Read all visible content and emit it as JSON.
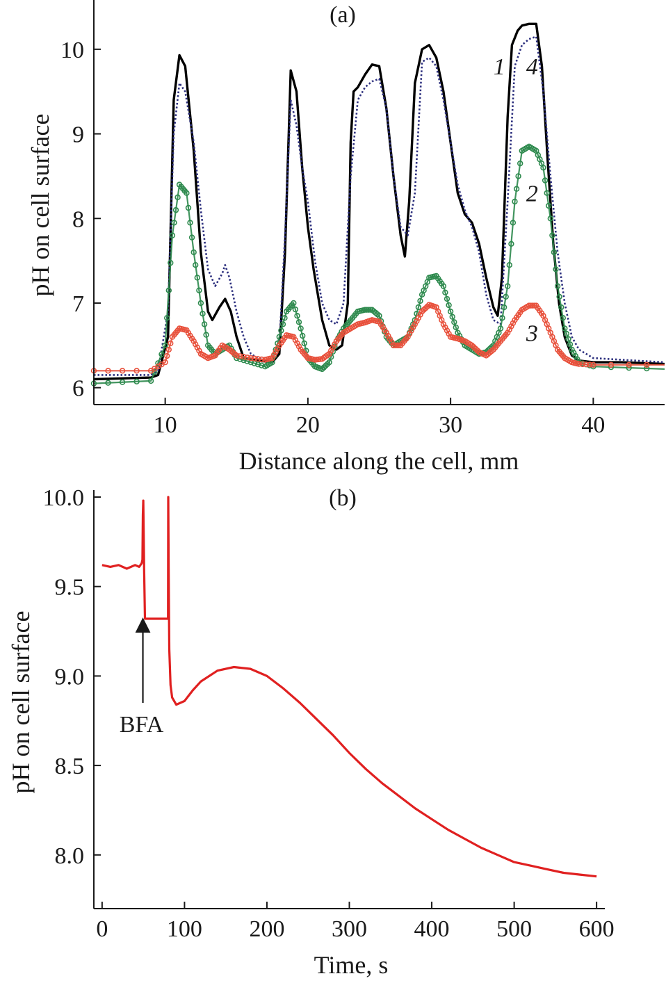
{
  "figure": {
    "colors": {
      "axis": "#1a1a1a"
    }
  },
  "chart_data": [
    {
      "type": "line",
      "panel_label": "(a)",
      "xlabel": "Distance along the cell, mm",
      "ylabel": "pH on cell surface",
      "xlim": [
        5,
        45
      ],
      "ylim": [
        5.8,
        10.5
      ],
      "xticks": [
        10,
        20,
        30,
        40
      ],
      "yticks": [
        6,
        7,
        8,
        9,
        10
      ],
      "xtick_labels": [
        "10",
        "20",
        "30",
        "40"
      ],
      "ytick_labels": [
        "6",
        "7",
        "8",
        "9",
        "10"
      ],
      "grid": false,
      "series": [
        {
          "name": "1",
          "color": "#000000",
          "style": "solid",
          "x": [
            5,
            9,
            9.5,
            10.2,
            10.6,
            11,
            11.4,
            12,
            12.5,
            13,
            13.3,
            13.8,
            14.2,
            14.6,
            15,
            15.5,
            16.5,
            17.5,
            18,
            18.4,
            18.8,
            19.2,
            19.6,
            20,
            20.4,
            21,
            21.5,
            22,
            22.4,
            22.8,
            23,
            23.2,
            23.5,
            24,
            24.5,
            25,
            25.5,
            26,
            26.5,
            26.8,
            27.1,
            27.5,
            28,
            28.5,
            29,
            29.5,
            30,
            30.5,
            31,
            31.5,
            32,
            32.5,
            33,
            33.3,
            33.6,
            34,
            34.3,
            34.7,
            35,
            35.5,
            36,
            36.4,
            36.8,
            37.2,
            37.6,
            38,
            38.5,
            39,
            40,
            41,
            42,
            45
          ],
          "y": [
            6.1,
            6.12,
            6.15,
            6.6,
            9.4,
            9.93,
            9.8,
            8.8,
            7.6,
            6.9,
            6.8,
            6.95,
            7.05,
            6.9,
            6.6,
            6.35,
            6.32,
            6.3,
            6.4,
            7.6,
            9.75,
            9.5,
            8.6,
            7.9,
            7.4,
            6.8,
            6.5,
            6.45,
            6.5,
            7.0,
            8.9,
            9.5,
            9.55,
            9.7,
            9.82,
            9.8,
            9.3,
            8.5,
            7.8,
            7.55,
            8.2,
            9.6,
            10.0,
            10.05,
            9.9,
            9.5,
            8.9,
            8.3,
            8.05,
            7.95,
            7.7,
            7.3,
            6.95,
            6.85,
            7.3,
            9.2,
            10.05,
            10.22,
            10.28,
            10.3,
            10.3,
            9.8,
            8.7,
            7.7,
            7.0,
            6.6,
            6.38,
            6.32,
            6.3,
            6.3,
            6.3,
            6.28
          ]
        },
        {
          "name": "4",
          "color": "#2c2f7e",
          "style": "dotted",
          "x": [
            5,
            9,
            9.5,
            10.2,
            10.6,
            11,
            11.4,
            12,
            12.5,
            13,
            13.5,
            14,
            14.2,
            14.5,
            15,
            15.5,
            16,
            16.5,
            17.5,
            18,
            18.4,
            18.8,
            19.2,
            19.6,
            20,
            20.5,
            21,
            21.5,
            22,
            22.5,
            23,
            23.5,
            24,
            24.5,
            25,
            25.5,
            26,
            26.5,
            27,
            27.5,
            28,
            28.5,
            29,
            29.5,
            30,
            30.5,
            31,
            31.5,
            32,
            32.5,
            33,
            33.5,
            34,
            34.5,
            35,
            35.5,
            36,
            36.5,
            37,
            37.5,
            38,
            38.5,
            39,
            40,
            45
          ],
          "y": [
            6.15,
            6.15,
            6.2,
            6.9,
            9.0,
            9.6,
            9.5,
            8.9,
            8.1,
            7.4,
            7.2,
            7.35,
            7.45,
            7.3,
            6.9,
            6.6,
            6.4,
            6.35,
            6.32,
            6.5,
            7.8,
            9.4,
            9.1,
            8.6,
            8.2,
            7.5,
            7.0,
            6.8,
            6.75,
            7.0,
            8.5,
            9.4,
            9.55,
            9.62,
            9.65,
            9.3,
            8.5,
            7.9,
            7.8,
            8.3,
            9.85,
            9.9,
            9.8,
            9.4,
            8.9,
            8.4,
            8.1,
            7.9,
            7.6,
            7.1,
            6.8,
            6.75,
            8.2,
            9.8,
            10.05,
            10.12,
            10.15,
            9.5,
            8.5,
            7.6,
            7.0,
            6.6,
            6.45,
            6.35,
            6.3
          ]
        },
        {
          "name": "2",
          "color": "#2e8a4e",
          "style": "circles",
          "x": [
            5,
            9,
            10,
            10.5,
            11,
            11.5,
            12,
            12.5,
            13,
            13.5,
            14,
            14.5,
            15,
            16,
            17,
            17.5,
            18,
            18.5,
            19,
            19.5,
            20,
            20.5,
            21,
            21.5,
            22,
            22.5,
            23,
            23.5,
            24,
            24.5,
            25,
            25.5,
            26,
            26.5,
            27,
            27.5,
            28,
            28.5,
            29,
            29.5,
            30,
            30.5,
            31,
            31.5,
            32,
            32.5,
            33,
            33.5,
            34,
            34.5,
            35,
            35.5,
            36,
            36.5,
            37,
            37.5,
            38,
            38.5,
            39,
            40,
            45
          ],
          "y": [
            6.05,
            6.08,
            6.5,
            7.8,
            8.4,
            8.3,
            7.6,
            7.0,
            6.5,
            6.4,
            6.45,
            6.5,
            6.35,
            6.3,
            6.25,
            6.3,
            6.6,
            6.9,
            7.0,
            6.7,
            6.35,
            6.25,
            6.22,
            6.3,
            6.55,
            6.7,
            6.8,
            6.9,
            6.92,
            6.92,
            6.85,
            6.6,
            6.5,
            6.55,
            6.6,
            6.8,
            7.1,
            7.3,
            7.32,
            7.2,
            6.9,
            6.65,
            6.5,
            6.45,
            6.4,
            6.42,
            6.5,
            6.7,
            7.2,
            8.2,
            8.8,
            8.85,
            8.8,
            8.6,
            8.0,
            7.2,
            6.7,
            6.45,
            6.3,
            6.25,
            6.22
          ]
        },
        {
          "name": "3",
          "color": "#e8513c",
          "style": "circles",
          "x": [
            5,
            9,
            10,
            10.5,
            11,
            11.5,
            12,
            12.5,
            13,
            13.5,
            14,
            14.5,
            15,
            16,
            17,
            17.5,
            18,
            18.5,
            19,
            19.5,
            20,
            20.5,
            21,
            21.5,
            22,
            22.5,
            23,
            23.5,
            24,
            24.5,
            25,
            25.5,
            26,
            26.5,
            27,
            27.5,
            28,
            28.5,
            29,
            29.5,
            30,
            30.5,
            31,
            31.5,
            32,
            32.5,
            33,
            33.5,
            34,
            34.5,
            35,
            35.5,
            36,
            36.5,
            37,
            37.5,
            38,
            38.5,
            39,
            40,
            45
          ],
          "y": [
            6.2,
            6.2,
            6.3,
            6.6,
            6.7,
            6.68,
            6.55,
            6.4,
            6.35,
            6.38,
            6.5,
            6.45,
            6.38,
            6.35,
            6.33,
            6.35,
            6.5,
            6.62,
            6.6,
            6.45,
            6.35,
            6.33,
            6.34,
            6.4,
            6.55,
            6.65,
            6.7,
            6.75,
            6.77,
            6.8,
            6.78,
            6.65,
            6.5,
            6.5,
            6.6,
            6.75,
            6.9,
            6.98,
            6.95,
            6.75,
            6.6,
            6.58,
            6.55,
            6.5,
            6.42,
            6.38,
            6.45,
            6.55,
            6.65,
            6.8,
            6.92,
            6.97,
            6.97,
            6.85,
            6.65,
            6.45,
            6.35,
            6.3,
            6.28,
            6.27,
            6.27
          ]
        }
      ],
      "curve_labels": [
        {
          "text": "1",
          "x": 33.0,
          "y": 9.8
        },
        {
          "text": "4",
          "x": 35.3,
          "y": 9.8
        },
        {
          "text": "2",
          "x": 35.3,
          "y": 8.3
        },
        {
          "text": "3",
          "x": 35.3,
          "y": 6.65
        }
      ]
    },
    {
      "type": "line",
      "panel_label": "(b)",
      "xlabel": "Time, s",
      "ylabel": "pH on cell surface",
      "xlim": [
        -10,
        610
      ],
      "ylim": [
        7.7,
        10.0
      ],
      "xticks": [
        0,
        100,
        200,
        300,
        400,
        500,
        600
      ],
      "yticks": [
        8.0,
        8.5,
        9.0,
        9.5,
        10.0
      ],
      "xtick_labels": [
        "0",
        "100",
        "200",
        "300",
        "400",
        "500",
        "600"
      ],
      "ytick_labels": [
        "8.0",
        "8.5",
        "9.0",
        "9.5",
        "10.0"
      ],
      "grid": false,
      "series": [
        {
          "color": "#e02020",
          "style": "solid",
          "x": [
            0,
            10,
            20,
            30,
            40,
            45,
            48,
            49,
            49.5,
            50,
            51,
            52,
            52.5,
            80,
            80.3,
            80.8,
            81.5,
            83,
            85,
            90,
            100,
            110,
            120,
            140,
            160,
            180,
            200,
            220,
            240,
            260,
            280,
            300,
            320,
            340,
            360,
            380,
            400,
            420,
            440,
            460,
            480,
            500,
            520,
            540,
            560,
            580,
            600
          ],
          "y": [
            9.62,
            9.61,
            9.62,
            9.6,
            9.62,
            9.61,
            9.63,
            9.65,
            9.9,
            9.98,
            9.6,
            9.32,
            9.32,
            9.32,
            10.0,
            9.6,
            9.15,
            8.95,
            8.88,
            8.84,
            8.86,
            8.92,
            8.97,
            9.03,
            9.05,
            9.04,
            9.0,
            8.93,
            8.85,
            8.76,
            8.67,
            8.57,
            8.48,
            8.4,
            8.33,
            8.26,
            8.2,
            8.14,
            8.09,
            8.04,
            8.0,
            7.96,
            7.94,
            7.92,
            7.9,
            7.89,
            7.88
          ]
        }
      ],
      "annotations": [
        {
          "text": "BFA",
          "arrow_to": [
            49.5,
            9.3
          ],
          "arrow_from": [
            49.5,
            8.85
          ]
        }
      ]
    }
  ]
}
